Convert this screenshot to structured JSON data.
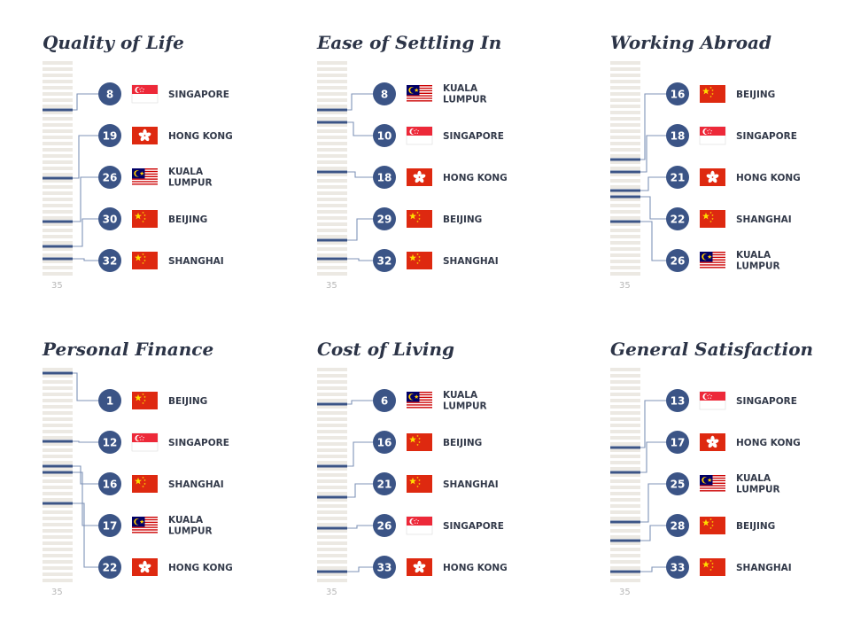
{
  "chart_data": [
    {
      "type": "bar",
      "title": "Quality of Life",
      "scale_label": "35",
      "series": [
        {
          "city": "SINGAPORE",
          "rank": 8,
          "flag": "singapore"
        },
        {
          "city": "HONG KONG",
          "rank": 19,
          "flag": "hongkong"
        },
        {
          "city": "KUALA LUMPUR",
          "rank": 26,
          "flag": "malaysia"
        },
        {
          "city": "BEIJING",
          "rank": 30,
          "flag": "china"
        },
        {
          "city": "SHANGHAI",
          "rank": 32,
          "flag": "china"
        }
      ]
    },
    {
      "type": "bar",
      "title": "Ease of Settling In",
      "scale_label": "35",
      "series": [
        {
          "city": "KUALA LUMPUR",
          "rank": 8,
          "flag": "malaysia"
        },
        {
          "city": "SINGAPORE",
          "rank": 10,
          "flag": "singapore"
        },
        {
          "city": "HONG KONG",
          "rank": 18,
          "flag": "hongkong"
        },
        {
          "city": "BEIJING",
          "rank": 29,
          "flag": "china"
        },
        {
          "city": "SHANGHAI",
          "rank": 32,
          "flag": "china"
        }
      ]
    },
    {
      "type": "bar",
      "title": "Working Abroad",
      "scale_label": "35",
      "series": [
        {
          "city": "BEIJING",
          "rank": 16,
          "flag": "china"
        },
        {
          "city": "SINGAPORE",
          "rank": 18,
          "flag": "singapore"
        },
        {
          "city": "HONG KONG",
          "rank": 21,
          "flag": "hongkong"
        },
        {
          "city": "SHANGHAI",
          "rank": 22,
          "flag": "china"
        },
        {
          "city": "KUALA LUMPUR",
          "rank": 26,
          "flag": "malaysia"
        }
      ]
    },
    {
      "type": "bar",
      "title": "Personal Finance",
      "scale_label": "35",
      "series": [
        {
          "city": "BEIJING",
          "rank": 1,
          "flag": "china"
        },
        {
          "city": "SINGAPORE",
          "rank": 12,
          "flag": "singapore"
        },
        {
          "city": "SHANGHAI",
          "rank": 16,
          "flag": "china"
        },
        {
          "city": "KUALA LUMPUR",
          "rank": 17,
          "flag": "malaysia"
        },
        {
          "city": "HONG KONG",
          "rank": 22,
          "flag": "hongkong"
        }
      ]
    },
    {
      "type": "bar",
      "title": "Cost of Living",
      "scale_label": "35",
      "series": [
        {
          "city": "KUALA LUMPUR",
          "rank": 6,
          "flag": "malaysia"
        },
        {
          "city": "BEIJING",
          "rank": 16,
          "flag": "china"
        },
        {
          "city": "SHANGHAI",
          "rank": 21,
          "flag": "china"
        },
        {
          "city": "SINGAPORE",
          "rank": 26,
          "flag": "singapore"
        },
        {
          "city": "HONG KONG",
          "rank": 33,
          "flag": "hongkong"
        }
      ]
    },
    {
      "type": "bar",
      "title": "General Satisfaction",
      "scale_label": "35",
      "series": [
        {
          "city": "SINGAPORE",
          "rank": 13,
          "flag": "singapore"
        },
        {
          "city": "HONG KONG",
          "rank": 17,
          "flag": "hongkong"
        },
        {
          "city": "KUALA LUMPUR",
          "rank": 25,
          "flag": "malaysia"
        },
        {
          "city": "BEIJING",
          "rank": 28,
          "flag": "china"
        },
        {
          "city": "SHANGHAI",
          "rank": 33,
          "flag": "china"
        }
      ]
    }
  ],
  "colors": {
    "navy": "#3b5486",
    "connector": "#7f93b7",
    "stripe": "#ece9e3",
    "title": "#2c3447",
    "city_text": "#333a4a",
    "scale_text": "#b8b8b8",
    "china_red": "#de2910",
    "china_star": "#ffde00",
    "hk_red": "#de2910",
    "singapore_red": "#ed2939",
    "malaysia_red": "#cc0001",
    "malaysia_blue": "#010066",
    "malaysia_yellow": "#ffcc00"
  }
}
